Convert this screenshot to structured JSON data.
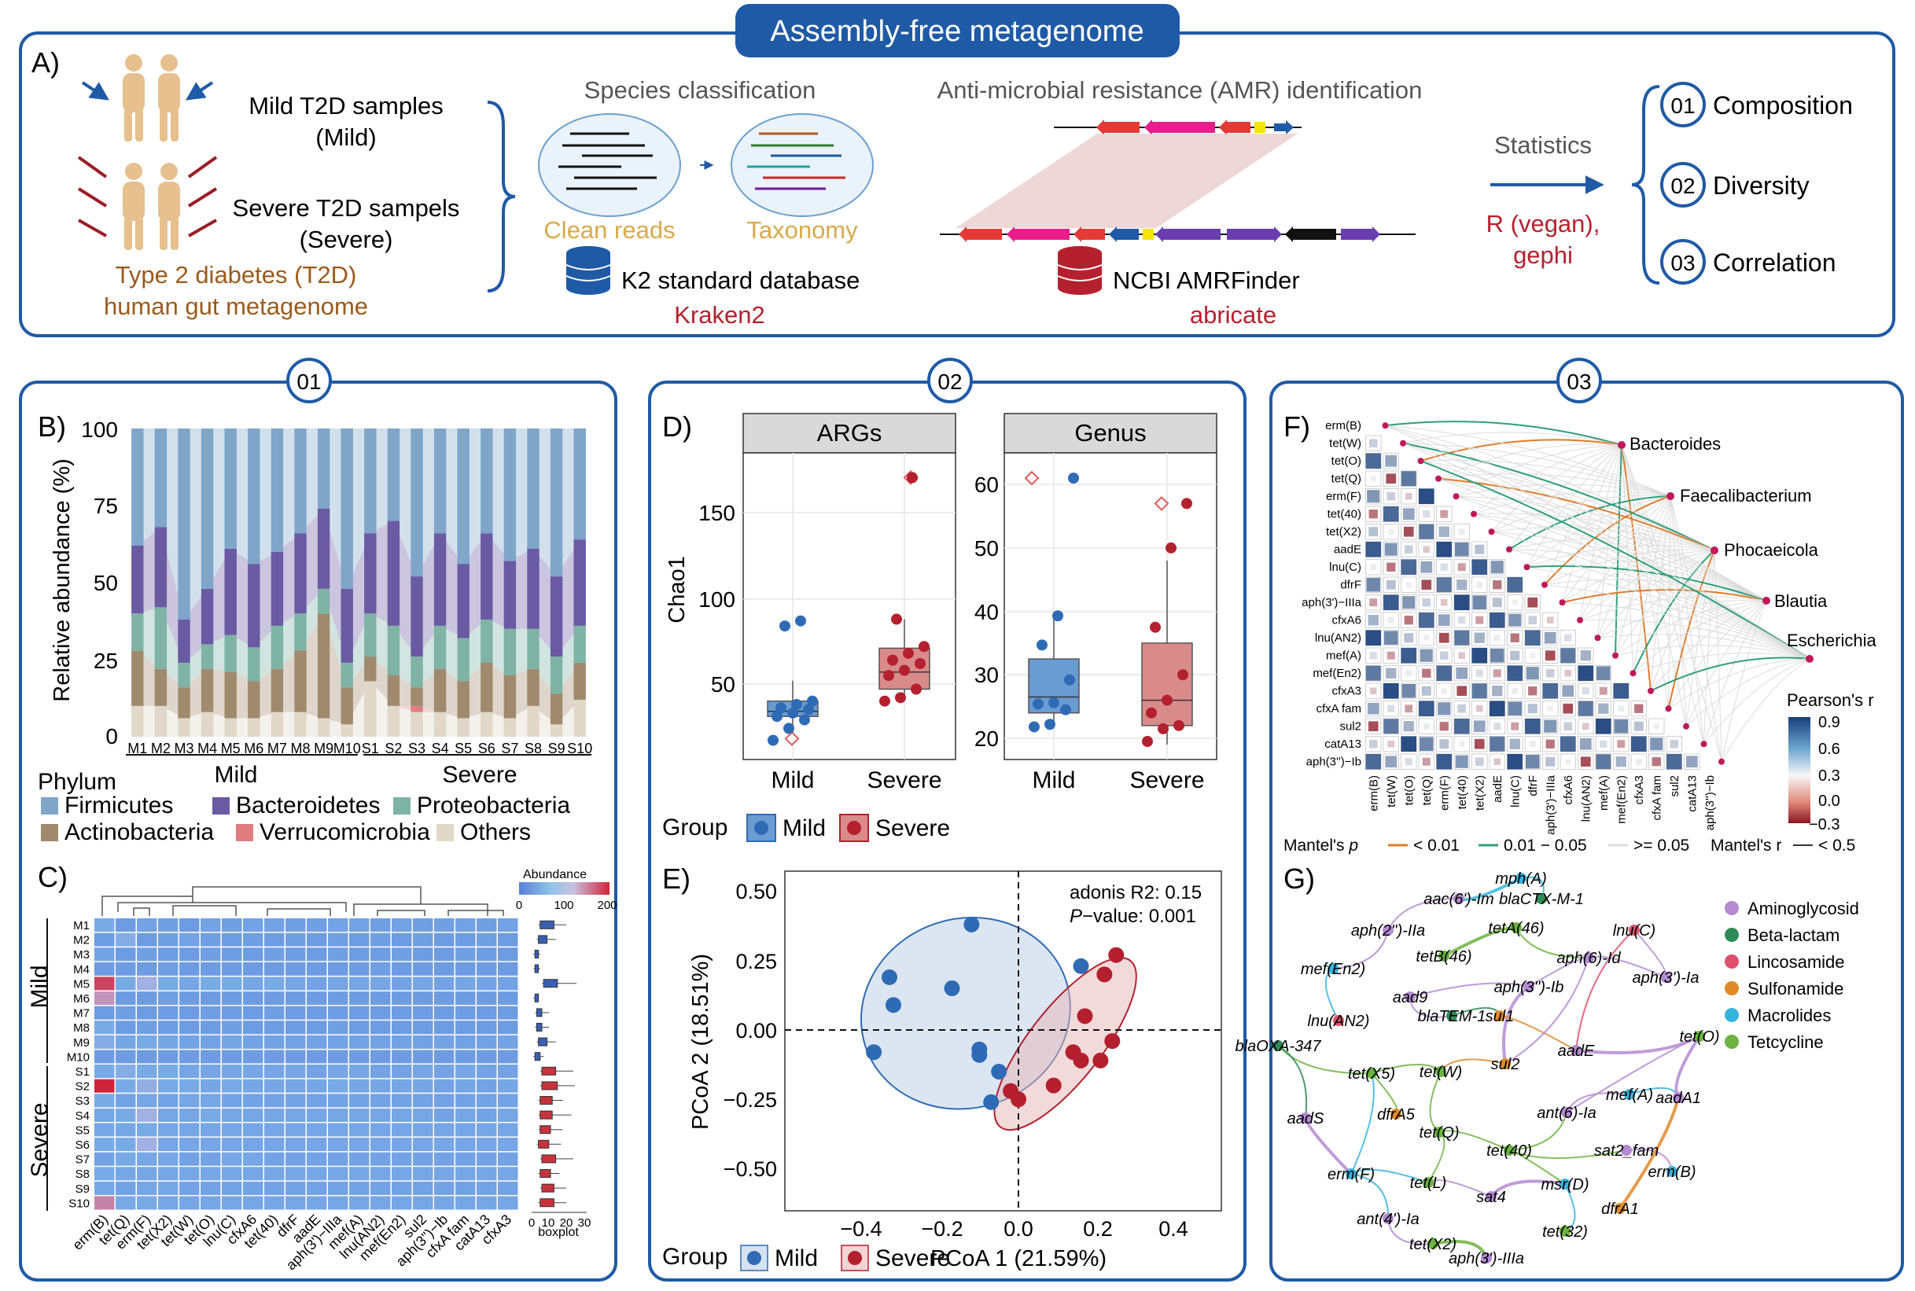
{
  "top": {
    "banner": "Assembly-free metagenome",
    "panel_label": "A)",
    "mild_samples": [
      "Mild T2D samples",
      "(Mild)"
    ],
    "severe_samples": [
      "Severe T2D sampels",
      "(Severe)"
    ],
    "t2d_caption": [
      "Type 2 diabetes (T2D)",
      "human gut metagenome"
    ],
    "species_title": "Species classification",
    "clean_reads": "Clean reads",
    "taxonomy": "Taxonomy",
    "k2_db": "K2 standard database",
    "kraken": "Kraken2",
    "amr_title": "Anti-microbial resistance (AMR) identification",
    "ncbi": "NCBI AMRFinder",
    "abricate": "abricate",
    "statistics": "Statistics",
    "r_tools": [
      "R (vegan),",
      "gephi"
    ],
    "outputs": [
      {
        "num": "01",
        "label": "Composition"
      },
      {
        "num": "02",
        "label": "Diversity"
      },
      {
        "num": "03",
        "label": "Correlation"
      }
    ]
  },
  "section_numbers": [
    "01",
    "02",
    "03"
  ],
  "panelB": {
    "label": "B)",
    "ylabel": "Relative abundance (%)",
    "yticks": [
      "0",
      "25",
      "50",
      "75",
      "100"
    ],
    "legend_title": "Phylum",
    "group_labels": [
      "Mild",
      "Severe"
    ]
  },
  "panelC": {
    "label": "C)",
    "rows_mild_label": "Mild",
    "rows_severe_label": "Severe",
    "samples": [
      "M1",
      "M2",
      "M3",
      "M4",
      "M5",
      "M6",
      "M7",
      "M8",
      "M9",
      "M10",
      "S1",
      "S2",
      "S3",
      "S4",
      "S5",
      "S6",
      "S7",
      "S8",
      "S9",
      "S10"
    ],
    "genes": [
      "erm(B)",
      "tet(Q)",
      "erm(F)",
      "tet(X2)",
      "tet(W)",
      "tet(O)",
      "lnu(C)",
      "cfxA6",
      "tet(40)",
      "dfrF",
      "aadE",
      "aph(3')−IIIa",
      "mef(A)",
      "lnu(AN2)",
      "mef(En2)",
      "sul2",
      "aph(3'')−Ib",
      "cfxA fam",
      "catA13",
      "cfxA3"
    ],
    "abundance_title": "Abundance",
    "abundance_ticks": [
      "0",
      "100",
      "200"
    ],
    "boxplot_ticks": [
      "0",
      "10",
      "20",
      "30"
    ],
    "boxplot_label": "boxplot"
  },
  "panelD": {
    "label": "D)",
    "ylabel": "Chao1",
    "facets": [
      "ARGs",
      "Genus"
    ],
    "left_yticks": [
      "50",
      "100",
      "150"
    ],
    "right_yticks": [
      "20",
      "30",
      "40",
      "50",
      "60"
    ],
    "xcats": [
      "Mild",
      "Severe"
    ],
    "legend_title": "Group",
    "legend_items": [
      "Mild",
      "Severe"
    ]
  },
  "panelE": {
    "label": "E)",
    "xlabel": "PCoA 1 (21.59%)",
    "ylabel": "PCoA 2 (18.51%)",
    "xticks": [
      "−0.4",
      "−0.2",
      "0.0",
      "0.2",
      "0.4"
    ],
    "yticks": [
      "0.50",
      "0.25",
      "0.00",
      "−0.25",
      "−0.50"
    ],
    "adonis": "adonis R2: 0.15",
    "pvalue_label": "P",
    "pvalue_rest": "−value: 0.001",
    "legend_title": "Group",
    "legend_items": [
      "Mild",
      "Severe"
    ]
  },
  "panelF": {
    "label": "F)",
    "genes": [
      "erm(B)",
      "tet(W)",
      "tet(O)",
      "tet(Q)",
      "erm(F)",
      "tet(40)",
      "tet(X2)",
      "aadE",
      "lnu(C)",
      "dfrF",
      "aph(3')−IIIa",
      "cfxA6",
      "lnu(AN2)",
      "mef(A)",
      "mef(En2)",
      "cfxA3",
      "cfxA fam",
      "sul2",
      "catA13",
      "aph(3'')−Ib"
    ],
    "taxa": [
      "Bacteroides",
      "Faecalibacterium",
      "Phocaeicola",
      "Blautia",
      "Escherichia"
    ],
    "colorbar_title": "Pearson's r",
    "colorbar_ticks": [
      "0.9",
      "0.6",
      "0.3",
      "0.0",
      "−0.3"
    ],
    "mantel_p_label": "Mantel's",
    "mantel_p_italic": "p",
    "mantel_items": [
      "< 0.01",
      "0.01 − 0.05",
      ">= 0.05"
    ],
    "mantel_r": "Mantel's r",
    "mantel_r_item": "< 0.5"
  },
  "panelG": {
    "label": "G)",
    "legend": [
      {
        "name": "Aminoglycosid",
        "color": "#b48ad1"
      },
      {
        "name": "Beta-lactam",
        "color": "#2e8b57"
      },
      {
        "name": "Lincosamide",
        "color": "#e0506e"
      },
      {
        "name": "Sulfonamide",
        "color": "#e08a2a"
      },
      {
        "name": "Macrolides",
        "color": "#36b4e0"
      },
      {
        "name": "Tetcycline",
        "color": "#6cb33f"
      }
    ],
    "nodes": [
      "mph(A)",
      "aac(6')-Im",
      "blaCTX-M-1",
      "aph(2'')-IIa",
      "tetA(46)",
      "lnu(C)",
      "mef(En2)",
      "tetB(46)",
      "aph(6)-Id",
      "aph(3'')-Ib",
      "aph(3')-Ia",
      "lnu(AN2)",
      "aad9",
      "blaTEM-1",
      "sul1",
      "tet(O)",
      "blaOXA-347",
      "aadE",
      "sul2",
      "tet(X5)",
      "tet(W)",
      "mef(A)",
      "aadA1",
      "aadS",
      "dfrA5",
      "ant(6)-Ia",
      "tet(Q)",
      "tet(40)",
      "sat2_fam",
      "erm(F)",
      "erm(B)",
      "tet(L)",
      "msr(D)",
      "sat4",
      "dfrA1",
      "ant(4')-Ia",
      "tet(32)",
      "tet(X2)",
      "aph(3')-IIIa"
    ]
  },
  "colors": {
    "frame": "#1f5aa6",
    "mild": "#2f6bb5",
    "severe": "#b5202e",
    "firmicutes": "#7fa5c9",
    "bacteroidetes": "#6a5aa3",
    "proteobacteria": "#7fb3a5",
    "actinobacteria": "#a08a6e",
    "verrucomicrobia": "#e07d80",
    "others": "#e0d8c8"
  },
  "phyla": [
    "Firmicutes",
    "Bacteroidetes",
    "Proteobacteria",
    "Actinobacteria",
    "Verrucomicrobia",
    "Others"
  ],
  "chart_data": [
    {
      "type": "bar",
      "stacked": true,
      "categories": [
        "M1",
        "M2",
        "M3",
        "M4",
        "M5",
        "M6",
        "M7",
        "M8",
        "M9",
        "M10",
        "S1",
        "S2",
        "S3",
        "S4",
        "S5",
        "S6",
        "S7",
        "S8",
        "S9",
        "S10"
      ],
      "ylabel": "Relative abundance (%)",
      "ylim": [
        0,
        100
      ],
      "series": [
        {
          "name": "Others",
          "values": [
            10,
            10,
            6,
            8,
            6,
            6,
            8,
            8,
            6,
            4,
            18,
            10,
            8,
            8,
            6,
            8,
            6,
            10,
            4,
            12
          ]
        },
        {
          "name": "Verrucomicrobia",
          "values": [
            0,
            0,
            0,
            0,
            0,
            0,
            0,
            0,
            0,
            0,
            0,
            0,
            2,
            0,
            0,
            0,
            0,
            0,
            0,
            0
          ]
        },
        {
          "name": "Actinobacteria",
          "values": [
            18,
            12,
            10,
            14,
            15,
            12,
            14,
            20,
            34,
            12,
            8,
            10,
            6,
            14,
            12,
            16,
            14,
            12,
            10,
            12
          ]
        },
        {
          "name": "Proteobacteria",
          "values": [
            12,
            20,
            8,
            8,
            12,
            11,
            14,
            12,
            8,
            8,
            14,
            16,
            10,
            14,
            14,
            14,
            15,
            13,
            12,
            12
          ]
        },
        {
          "name": "Bacteroidetes",
          "values": [
            22,
            26,
            14,
            18,
            28,
            27,
            24,
            26,
            26,
            24,
            26,
            34,
            26,
            30,
            24,
            28,
            22,
            26,
            26,
            28
          ]
        },
        {
          "name": "Firmicutes",
          "values": [
            38,
            32,
            62,
            52,
            39,
            44,
            40,
            34,
            26,
            52,
            34,
            30,
            48,
            34,
            44,
            34,
            43,
            39,
            48,
            36
          ]
        }
      ]
    },
    {
      "type": "heatmap",
      "rows": [
        "M1",
        "M2",
        "M3",
        "M4",
        "M5",
        "M6",
        "M7",
        "M8",
        "M9",
        "M10",
        "S1",
        "S2",
        "S3",
        "S4",
        "S5",
        "S6",
        "S7",
        "S8",
        "S9",
        "S10"
      ],
      "cols": [
        "erm(B)",
        "tet(Q)",
        "erm(F)",
        "tet(X2)",
        "tet(W)",
        "tet(O)",
        "lnu(C)",
        "cfxA6",
        "tet(40)",
        "dfrF",
        "aadE",
        "aph(3')−IIIa",
        "mef(A)",
        "lnu(AN2)",
        "mef(En2)",
        "sul2",
        "aph(3'')−Ib",
        "cfxA fam",
        "catA13",
        "cfxA3"
      ],
      "values": [
        [
          60,
          40,
          50,
          45,
          40,
          50,
          45,
          50,
          50,
          45,
          45,
          50,
          50,
          45,
          50,
          45,
          45,
          50,
          45,
          50
        ],
        [
          40,
          70,
          40,
          45,
          50,
          45,
          40,
          45,
          40,
          45,
          40,
          45,
          40,
          45,
          40,
          45,
          40,
          40,
          45,
          40
        ],
        [
          50,
          40,
          45,
          40,
          40,
          45,
          40,
          40,
          45,
          40,
          40,
          45,
          40,
          40,
          45,
          40,
          40,
          45,
          40,
          40
        ],
        [
          40,
          40,
          40,
          45,
          40,
          40,
          40,
          40,
          40,
          40,
          40,
          40,
          40,
          45,
          40,
          40,
          40,
          40,
          40,
          40
        ],
        [
          180,
          60,
          90,
          60,
          55,
          60,
          60,
          55,
          60,
          55,
          50,
          55,
          55,
          55,
          50,
          55,
          50,
          55,
          50,
          50
        ],
        [
          130,
          40,
          40,
          45,
          40,
          40,
          40,
          40,
          40,
          40,
          40,
          40,
          40,
          40,
          40,
          40,
          40,
          40,
          40,
          40
        ],
        [
          40,
          45,
          40,
          40,
          40,
          45,
          40,
          40,
          45,
          40,
          40,
          40,
          40,
          40,
          40,
          40,
          40,
          40,
          40,
          40
        ],
        [
          60,
          40,
          45,
          40,
          40,
          40,
          45,
          40,
          40,
          40,
          40,
          45,
          40,
          40,
          40,
          40,
          40,
          40,
          40,
          40
        ],
        [
          70,
          55,
          60,
          55,
          50,
          50,
          55,
          50,
          50,
          50,
          50,
          50,
          50,
          50,
          50,
          50,
          50,
          50,
          50,
          50
        ],
        [
          40,
          40,
          40,
          40,
          40,
          40,
          40,
          40,
          40,
          40,
          40,
          40,
          40,
          40,
          40,
          40,
          40,
          40,
          40,
          40
        ],
        [
          60,
          70,
          60,
          60,
          55,
          55,
          55,
          55,
          55,
          55,
          50,
          55,
          55,
          50,
          50,
          55,
          50,
          55,
          50,
          50
        ],
        [
          200,
          60,
          80,
          60,
          60,
          55,
          60,
          55,
          55,
          55,
          55,
          60,
          55,
          55,
          55,
          55,
          50,
          55,
          50,
          55
        ],
        [
          60,
          50,
          55,
          50,
          55,
          55,
          50,
          50,
          50,
          50,
          50,
          50,
          50,
          50,
          50,
          50,
          50,
          50,
          50,
          50
        ],
        [
          55,
          60,
          90,
          55,
          55,
          60,
          55,
          55,
          55,
          55,
          55,
          55,
          55,
          55,
          55,
          55,
          50,
          55,
          50,
          55
        ],
        [
          55,
          55,
          60,
          55,
          55,
          55,
          55,
          55,
          55,
          55,
          55,
          55,
          55,
          55,
          55,
          55,
          55,
          55,
          55,
          55
        ],
        [
          60,
          60,
          90,
          55,
          55,
          55,
          55,
          55,
          55,
          55,
          55,
          55,
          55,
          55,
          55,
          55,
          55,
          55,
          55,
          55
        ],
        [
          50,
          60,
          55,
          55,
          50,
          50,
          55,
          55,
          50,
          50,
          50,
          50,
          50,
          50,
          50,
          50,
          50,
          50,
          50,
          50
        ],
        [
          60,
          55,
          55,
          55,
          55,
          55,
          55,
          55,
          55,
          55,
          55,
          55,
          55,
          55,
          55,
          55,
          55,
          55,
          55,
          55
        ],
        [
          55,
          50,
          55,
          55,
          50,
          50,
          50,
          50,
          50,
          50,
          50,
          50,
          50,
          50,
          50,
          50,
          50,
          50,
          50,
          50
        ],
        [
          140,
          60,
          60,
          55,
          55,
          55,
          55,
          55,
          55,
          55,
          55,
          55,
          55,
          55,
          55,
          55,
          55,
          55,
          55,
          55
        ]
      ]
    },
    {
      "type": "scatter",
      "facet": "ARGs",
      "ylabel": "Chao1",
      "ylim": [
        10,
        190
      ],
      "categories": [
        "Mild",
        "Severe"
      ],
      "series": [
        {
          "name": "Mild",
          "values": [
            17,
            24,
            29,
            31,
            33,
            35,
            36,
            38,
            40,
            84,
            87
          ]
        },
        {
          "name": "Severe",
          "values": [
            40,
            42,
            47,
            55,
            58,
            62,
            64,
            68,
            72,
            88,
            171
          ]
        }
      ]
    },
    {
      "type": "scatter",
      "facet": "Genus",
      "ylim": [
        17,
        65
      ],
      "categories": [
        "Mild",
        "Severe"
      ],
      "series": [
        {
          "name": "Mild",
          "values": [
            21.8,
            22.2,
            24.5,
            25.4,
            25.6,
            29.2,
            34.7,
            39.3,
            61
          ]
        },
        {
          "name": "Severe",
          "values": [
            19.5,
            21.5,
            22,
            24,
            26,
            30,
            37.5,
            50,
            57
          ]
        }
      ]
    },
    {
      "type": "scatter",
      "xlabel": "PCoA 1 (21.59%)",
      "ylabel": "PCoA 2 (18.51%)",
      "xlim": [
        -0.5,
        0.45
      ],
      "ylim": [
        -0.56,
        0.56
      ],
      "series": [
        {
          "name": "Mild",
          "points": [
            [
              -0.12,
              0.38
            ],
            [
              -0.33,
              0.19
            ],
            [
              -0.32,
              0.09
            ],
            [
              -0.17,
              0.15
            ],
            [
              -0.37,
              -0.08
            ],
            [
              -0.1,
              -0.07
            ],
            [
              -0.1,
              -0.09
            ],
            [
              -0.05,
              -0.15
            ],
            [
              -0.07,
              -0.26
            ],
            [
              0.16,
              0.23
            ]
          ]
        },
        {
          "name": "Severe",
          "points": [
            [
              0.25,
              0.27
            ],
            [
              0.22,
              0.2
            ],
            [
              0.17,
              0.05
            ],
            [
              0.24,
              -0.04
            ],
            [
              0.21,
              -0.11
            ],
            [
              0.16,
              -0.11
            ],
            [
              0.14,
              -0.08
            ],
            [
              0.09,
              -0.2
            ],
            [
              -0.02,
              -0.22
            ],
            [
              0.0,
              -0.25
            ]
          ]
        }
      ]
    }
  ]
}
